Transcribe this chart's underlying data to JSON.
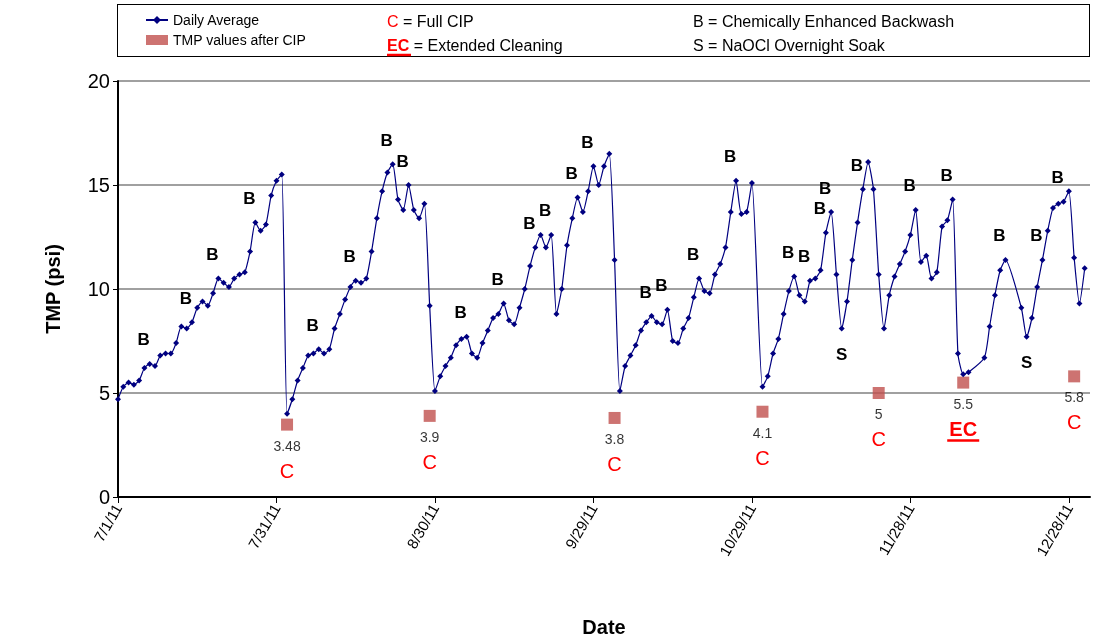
{
  "chart_data": {
    "type": "line",
    "xlabel": "Date",
    "ylabel": "TMP (psi)",
    "xlim": [
      "2011-07-01",
      "2012-01-01"
    ],
    "xticks": [
      {
        "value": "2011-07-01",
        "label": "7/1/11"
      },
      {
        "value": "2011-07-31",
        "label": "7/31/11"
      },
      {
        "value": "2011-08-30",
        "label": "8/30/11"
      },
      {
        "value": "2011-09-29",
        "label": "9/29/11"
      },
      {
        "value": "2011-10-29",
        "label": "10/29/11"
      },
      {
        "value": "2011-11-28",
        "label": "11/28/11"
      },
      {
        "value": "2011-12-28",
        "label": "12/28/11"
      }
    ],
    "ylim": [
      0,
      20
    ],
    "yticks": [
      0,
      5,
      10,
      15,
      20
    ],
    "grid": "y",
    "legend": "top",
    "series": [
      {
        "name": "Daily Average",
        "marker": "diamond",
        "color": "#000080",
        "x": [
          "2011-07-01",
          "2011-07-02",
          "2011-07-03",
          "2011-07-04",
          "2011-07-05",
          "2011-07-06",
          "2011-07-07",
          "2011-07-08",
          "2011-07-09",
          "2011-07-10",
          "2011-07-11",
          "2011-07-12",
          "2011-07-13",
          "2011-07-14",
          "2011-07-15",
          "2011-07-16",
          "2011-07-17",
          "2011-07-18",
          "2011-07-19",
          "2011-07-20",
          "2011-07-21",
          "2011-07-22",
          "2011-07-23",
          "2011-07-24",
          "2011-07-25",
          "2011-07-26",
          "2011-07-27",
          "2011-07-28",
          "2011-07-29",
          "2011-07-30",
          "2011-07-31",
          "2011-08-01",
          "2011-08-02",
          "2011-08-03",
          "2011-08-04",
          "2011-08-05",
          "2011-08-06",
          "2011-08-07",
          "2011-08-08",
          "2011-08-09",
          "2011-08-10",
          "2011-08-11",
          "2011-08-12",
          "2011-08-13",
          "2011-08-14",
          "2011-08-15",
          "2011-08-16",
          "2011-08-17",
          "2011-08-18",
          "2011-08-19",
          "2011-08-20",
          "2011-08-21",
          "2011-08-22",
          "2011-08-23",
          "2011-08-24",
          "2011-08-25",
          "2011-08-26",
          "2011-08-27",
          "2011-08-28",
          "2011-08-29",
          "2011-08-30",
          "2011-08-31",
          "2011-09-01",
          "2011-09-02",
          "2011-09-03",
          "2011-09-04",
          "2011-09-05",
          "2011-09-06",
          "2011-09-07",
          "2011-09-08",
          "2011-09-09",
          "2011-09-10",
          "2011-09-11",
          "2011-09-12",
          "2011-09-13",
          "2011-09-14",
          "2011-09-15",
          "2011-09-16",
          "2011-09-17",
          "2011-09-18",
          "2011-09-19",
          "2011-09-20",
          "2011-09-21",
          "2011-09-22",
          "2011-09-23",
          "2011-09-24",
          "2011-09-25",
          "2011-09-26",
          "2011-09-27",
          "2011-09-28",
          "2011-09-29",
          "2011-09-30",
          "2011-10-01",
          "2011-10-02",
          "2011-10-03",
          "2011-10-04",
          "2011-10-05",
          "2011-10-06",
          "2011-10-07",
          "2011-10-08",
          "2011-10-09",
          "2011-10-10",
          "2011-10-11",
          "2011-10-12",
          "2011-10-13",
          "2011-10-14",
          "2011-10-15",
          "2011-10-16",
          "2011-10-17",
          "2011-10-18",
          "2011-10-19",
          "2011-10-20",
          "2011-10-21",
          "2011-10-22",
          "2011-10-23",
          "2011-10-24",
          "2011-10-25",
          "2011-10-26",
          "2011-10-27",
          "2011-10-28",
          "2011-10-29",
          "2011-10-31",
          "2011-11-01",
          "2011-11-02",
          "2011-11-03",
          "2011-11-04",
          "2011-11-05",
          "2011-11-06",
          "2011-11-07",
          "2011-11-08",
          "2011-11-09",
          "2011-11-10",
          "2011-11-11",
          "2011-11-12",
          "2011-11-13",
          "2011-11-14",
          "2011-11-15",
          "2011-11-16",
          "2011-11-17",
          "2011-11-18",
          "2011-11-19",
          "2011-11-20",
          "2011-11-21",
          "2011-11-22",
          "2011-11-23",
          "2011-11-24",
          "2011-11-25",
          "2011-11-26",
          "2011-11-27",
          "2011-11-28",
          "2011-11-29",
          "2011-11-30",
          "2011-12-01",
          "2011-12-02",
          "2011-12-03",
          "2011-12-04",
          "2011-12-05",
          "2011-12-06",
          "2011-12-07",
          "2011-12-08",
          "2011-12-09",
          "2011-12-12",
          "2011-12-13",
          "2011-12-14",
          "2011-12-15",
          "2011-12-16",
          "2011-12-19",
          "2011-12-20",
          "2011-12-21",
          "2011-12-22",
          "2011-12-23",
          "2011-12-24",
          "2011-12-25",
          "2011-12-26",
          "2011-12-27",
          "2011-12-28",
          "2011-12-29",
          "2011-12-30",
          "2011-12-31"
        ],
        "values": [
          4.7,
          5.3,
          5.5,
          5.4,
          5.6,
          6.2,
          6.4,
          6.3,
          6.8,
          6.9,
          6.9,
          7.4,
          8.2,
          8.1,
          8.4,
          9.1,
          9.4,
          9.2,
          9.8,
          10.5,
          10.3,
          10.1,
          10.5,
          10.7,
          10.8,
          11.8,
          13.2,
          12.8,
          13.1,
          14.5,
          15.2,
          15.5,
          4.0,
          4.7,
          5.6,
          6.2,
          6.8,
          6.9,
          7.1,
          6.9,
          7.1,
          8.1,
          8.8,
          9.5,
          10.1,
          10.4,
          10.3,
          10.5,
          11.8,
          13.4,
          14.7,
          15.6,
          16.0,
          14.3,
          13.8,
          15.0,
          13.8,
          13.4,
          14.1,
          9.2,
          5.1,
          5.8,
          6.3,
          6.7,
          7.3,
          7.6,
          7.7,
          6.9,
          6.7,
          7.4,
          8.0,
          8.6,
          8.8,
          9.3,
          8.5,
          8.3,
          9.1,
          10.0,
          11.1,
          12.0,
          12.6,
          12.0,
          12.6,
          8.8,
          10.0,
          12.1,
          13.4,
          14.4,
          13.7,
          14.7,
          15.9,
          15.0,
          15.9,
          16.5,
          11.4,
          5.1,
          6.3,
          6.8,
          7.3,
          8.0,
          8.4,
          8.7,
          8.4,
          8.3,
          9.0,
          7.5,
          7.4,
          8.1,
          8.6,
          9.6,
          10.5,
          9.9,
          9.8,
          10.7,
          11.2,
          12.0,
          13.7,
          15.2,
          13.6,
          13.7,
          15.1,
          5.3,
          5.8,
          6.9,
          7.6,
          8.8,
          9.9,
          10.6,
          9.7,
          9.4,
          10.4,
          10.5,
          10.9,
          12.7,
          13.7,
          10.7,
          8.1,
          9.4,
          11.4,
          13.2,
          14.8,
          16.1,
          14.8,
          10.7,
          8.1,
          9.7,
          10.6,
          11.2,
          11.8,
          12.6,
          13.8,
          11.3,
          11.6,
          10.5,
          10.8,
          13.0,
          13.3,
          14.3,
          6.9,
          5.9,
          6.0,
          6.7,
          8.2,
          9.7,
          10.9,
          11.4,
          9.1,
          7.7,
          8.6,
          10.1,
          11.4,
          12.8,
          13.9,
          14.1,
          14.2,
          14.7,
          11.5,
          9.3,
          11.0
        ]
      },
      {
        "name": "TMP values after CIP",
        "type": "scatter",
        "marker": "square",
        "color": "#c0504d",
        "x": [
          "2011-08-02",
          "2011-08-29",
          "2011-10-03",
          "2011-10-31",
          "2011-11-22",
          "2011-12-08",
          "2011-12-29"
        ],
        "values": [
          3.48,
          3.9,
          3.8,
          4.1,
          5,
          5.5,
          5.8
        ],
        "value_labels": [
          "3.48",
          "3.9",
          "3.8",
          "4.1",
          "5",
          "5.5",
          "5.8"
        ]
      }
    ],
    "annotations": [
      "C = Full CIP",
      "EC = Extended Cleaning",
      "B = Chemically Enhanced Backwash",
      "S = NaOCl Overnight Soak",
      {
        "text": "B",
        "x": "2011-07-07",
        "y": 6.4
      },
      {
        "text": "B",
        "x": "2011-07-15",
        "y": 8.4
      },
      {
        "text": "B",
        "x": "2011-07-20",
        "y": 10.5
      },
      {
        "text": "B",
        "x": "2011-07-27",
        "y": 13.2
      },
      {
        "text": "B",
        "x": "2011-08-08",
        "y": 7.1
      },
      {
        "text": "B",
        "x": "2011-08-15",
        "y": 10.4
      },
      {
        "text": "B",
        "x": "2011-08-22",
        "y": 16.0
      },
      {
        "text": "B",
        "x": "2011-08-25",
        "y": 15.0
      },
      {
        "text": "B",
        "x": "2011-09-05",
        "y": 7.7
      },
      {
        "text": "B",
        "x": "2011-09-12",
        "y": 9.3
      },
      {
        "text": "B",
        "x": "2011-09-18",
        "y": 12.0
      },
      {
        "text": "B",
        "x": "2011-09-21",
        "y": 12.6
      },
      {
        "text": "B",
        "x": "2011-09-26",
        "y": 14.4
      },
      {
        "text": "B",
        "x": "2011-09-29",
        "y": 15.9
      },
      {
        "text": "B",
        "x": "2011-10-10",
        "y": 8.7
      },
      {
        "text": "B",
        "x": "2011-10-13",
        "y": 9.0
      },
      {
        "text": "B",
        "x": "2011-10-19",
        "y": 10.5
      },
      {
        "text": "B",
        "x": "2011-10-26",
        "y": 15.2
      },
      {
        "text": "B",
        "x": "2011-11-06",
        "y": 10.6
      },
      {
        "text": "B",
        "x": "2011-11-09",
        "y": 10.4
      },
      {
        "text": "B",
        "x": "2011-11-12",
        "y": 12.7
      },
      {
        "text": "B",
        "x": "2011-11-13",
        "y": 13.7
      },
      {
        "text": "B",
        "x": "2011-11-19",
        "y": 14.8
      },
      {
        "text": "B",
        "x": "2011-11-29",
        "y": 13.8
      },
      {
        "text": "B",
        "x": "2011-12-06",
        "y": 14.3
      },
      {
        "text": "B",
        "x": "2011-12-16",
        "y": 11.4
      },
      {
        "text": "B",
        "x": "2011-12-23",
        "y": 11.4
      },
      {
        "text": "B",
        "x": "2011-12-27",
        "y": 14.2
      },
      {
        "text": "S",
        "x": "2011-11-15",
        "y": 8.1
      },
      {
        "text": "S",
        "x": "2011-12-20",
        "y": 7.7
      },
      {
        "text": "C",
        "x": "2011-08-02",
        "y": 3.48
      },
      {
        "text": "C",
        "x": "2011-08-29",
        "y": 3.9
      },
      {
        "text": "C",
        "x": "2011-10-03",
        "y": 3.8
      },
      {
        "text": "C",
        "x": "2011-10-31",
        "y": 4.1
      },
      {
        "text": "C",
        "x": "2011-11-22",
        "y": 5
      },
      {
        "text": "EC",
        "x": "2011-12-08",
        "y": 5.5
      },
      {
        "text": "C",
        "x": "2011-12-29",
        "y": 5.8
      }
    ]
  }
}
